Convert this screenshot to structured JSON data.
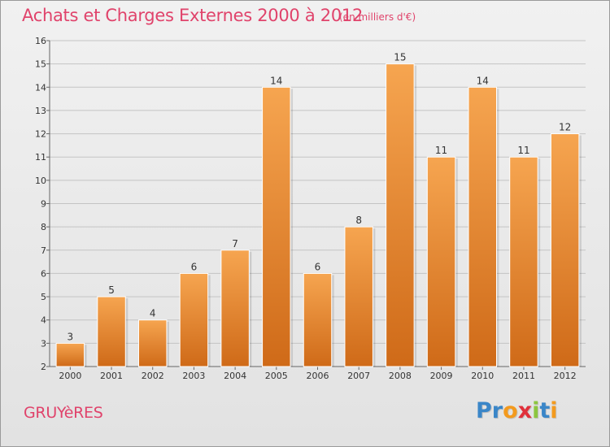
{
  "title": "Achats et Charges Externes 2000 à 2012",
  "subtitle": "(en milliers d'€)",
  "town": "GRUYèRES",
  "logo": {
    "letters": [
      "P",
      "r",
      "o",
      "x",
      "i",
      "t",
      "i"
    ],
    "colors": [
      "#3a86c8",
      "#3a86c8",
      "#f39a1e",
      "#e0303b",
      "#8cc63f",
      "#3a86c8",
      "#f39a1e"
    ]
  },
  "colors": {
    "accent": "#e0436b",
    "bar_top": "#f6a550",
    "bar_bottom": "#cf6a18"
  },
  "chart_data": {
    "type": "bar",
    "title": "Achats et Charges Externes 2000 à 2012",
    "subtitle": "(en milliers d'€)",
    "categories": [
      "2000",
      "2001",
      "2002",
      "2003",
      "2004",
      "2005",
      "2006",
      "2007",
      "2008",
      "2009",
      "2010",
      "2011",
      "2012"
    ],
    "values": [
      3,
      5,
      4,
      6,
      7,
      14,
      6,
      8,
      15,
      11,
      14,
      11,
      12
    ],
    "ylim": [
      2,
      16
    ],
    "yticks": [
      2,
      3,
      4,
      5,
      6,
      7,
      8,
      9,
      10,
      11,
      12,
      13,
      14,
      15,
      16
    ],
    "xlabel": "",
    "ylabel": "",
    "grid": true
  }
}
